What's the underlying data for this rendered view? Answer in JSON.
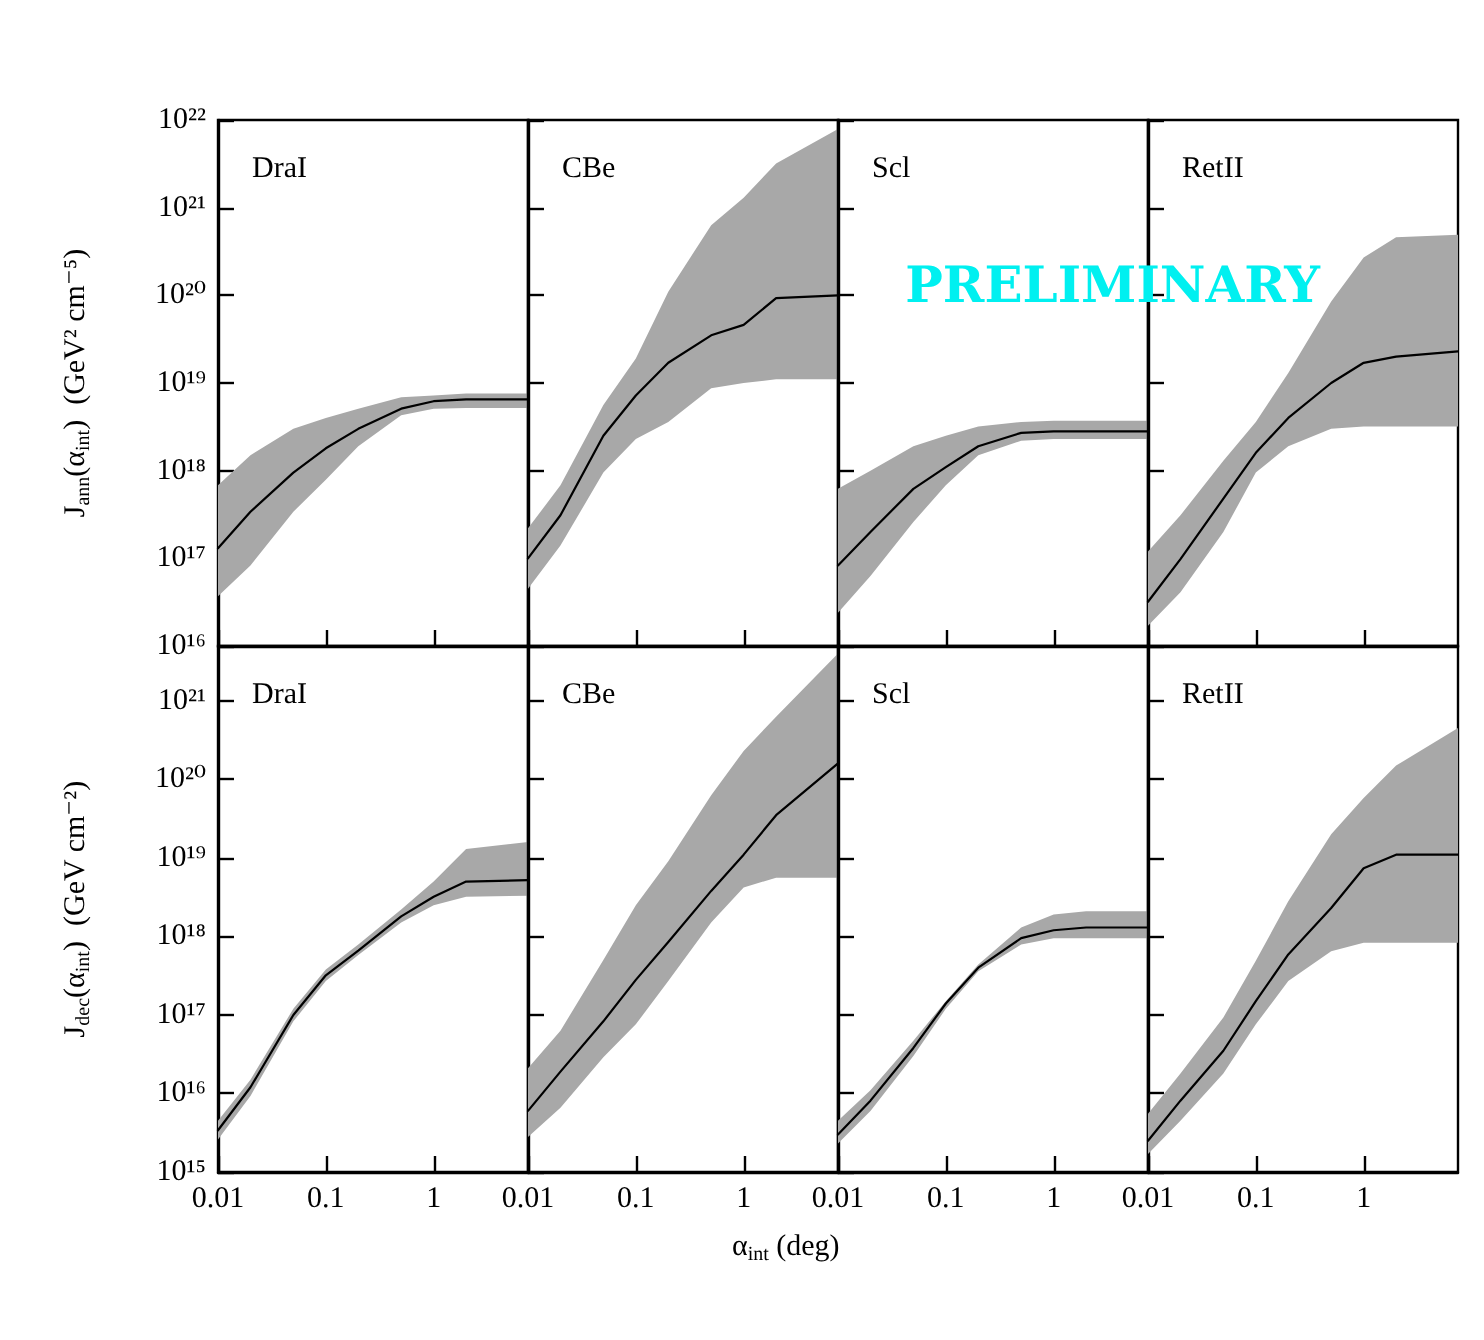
{
  "chart_data": [
    {
      "type": "line",
      "title": "DraI",
      "ylabel": "J$_{ann}$(α$_{int}$)  (GeV² cm⁻⁵)",
      "log": "xy",
      "grid": false,
      "tick_labels": "y",
      "xlim": [
        0.01,
        7.5
      ],
      "xticks": [
        0.01,
        0.1,
        1
      ],
      "ylim": [
        1e+16,
        1e+22
      ],
      "yticks": [
        {
          "value": 1e+16,
          "label": "10¹⁶"
        },
        {
          "value": 1e+17,
          "label": "10¹⁷"
        },
        {
          "value": 1e+18,
          "label": "10¹⁸"
        },
        {
          "value": 1e+19,
          "label": "10¹⁹"
        },
        {
          "value": 1e+20,
          "label": "10²⁰"
        },
        {
          "value": 1e+21,
          "label": "10²¹"
        },
        {
          "value": 1e+22,
          "label": "10²²"
        }
      ],
      "x": [
        0.01,
        0.02,
        0.05,
        0.1,
        0.2,
        0.5,
        1,
        2,
        7.5
      ],
      "series": [
        {
          "color": "#000000",
          "values": [
            1.3e+17,
            3.4e+17,
            9.5e+17,
            1.8e+18,
            3e+18,
            5.1e+18,
            6.2e+18,
            6.5e+18,
            6.5e+18
          ],
          "lower": [
            3.7e+16,
            8.3e+16,
            3.4e+17,
            7.9e+17,
            1.9e+18,
            4.3e+18,
            5.1e+18,
            5.2e+18,
            5.2e+18
          ],
          "upper": [
            6.8e+17,
            1.5e+18,
            3e+18,
            4e+18,
            5.1e+18,
            6.9e+18,
            7.2e+18,
            7.6e+18,
            7.6e+18
          ]
        }
      ]
    },
    {
      "type": "line",
      "title": "CBe",
      "log": "xy",
      "grid": false,
      "tick_labels": false,
      "xlim": [
        0.01,
        7.5
      ],
      "xticks": [
        0.01,
        0.1,
        1
      ],
      "ylim": [
        1e+16,
        1e+22
      ],
      "yticks": [
        1e+16,
        1e+17,
        1e+18,
        1e+19,
        1e+20,
        1e+21,
        1e+22
      ],
      "x": [
        0.01,
        0.02,
        0.05,
        0.1,
        0.2,
        0.5,
        1,
        2,
        7.5
      ],
      "series": [
        {
          "color": "#000000",
          "values": [
            1e+17,
            3.1e+17,
            2.5e+18,
            7.2e+18,
            1.7e+19,
            3.5e+19,
            4.6e+19,
            9.3e+19,
            1e+20
          ],
          "lower": [
            4.5e+16,
            1.4e+17,
            9.5e+17,
            2.3e+18,
            3.6e+18,
            8.7e+18,
            1e+19,
            1.1e+19,
            1.1e+19
          ],
          "upper": [
            2.2e+17,
            6.8e+17,
            5.6e+18,
            1.9e+19,
            1.1e+20,
            6.3e+20,
            1.3e+21,
            3.2e+21,
            7.9e+21
          ]
        }
      ]
    },
    {
      "type": "line",
      "title": "Scl",
      "log": "xy",
      "grid": false,
      "tick_labels": false,
      "xlim": [
        0.01,
        7.5
      ],
      "xticks": [
        0.01,
        0.1,
        1
      ],
      "ylim": [
        1e+16,
        1e+22
      ],
      "yticks": [
        1e+16,
        1e+17,
        1e+18,
        1e+19,
        1e+20,
        1e+21,
        1e+22
      ],
      "x": [
        0.01,
        0.02,
        0.05,
        0.1,
        0.2,
        0.5,
        1,
        2,
        7.5
      ],
      "series": [
        {
          "color": "#000000",
          "values": [
            8.3e+16,
            2e+17,
            6.2e+17,
            1.1e+18,
            1.9e+18,
            2.7e+18,
            2.8e+18,
            2.8e+18,
            2.8e+18
          ],
          "lower": [
            2.4e+16,
            6.3e+16,
            2.6e+17,
            6.8e+17,
            1.5e+18,
            2.2e+18,
            2.3e+18,
            2.3e+18,
            2.3e+18
          ],
          "upper": [
            6.2e+17,
            1e+18,
            1.9e+18,
            2.5e+18,
            3.2e+18,
            3.6e+18,
            3.7e+18,
            3.7e+18,
            3.7e+18
          ]
        }
      ]
    },
    {
      "type": "line",
      "title": "RetII",
      "annotations": [
        "PRELIMINARY"
      ],
      "log": "xy",
      "grid": false,
      "tick_labels": false,
      "xlim": [
        0.01,
        7.5
      ],
      "xticks": [
        0.01,
        0.1,
        1
      ],
      "ylim": [
        1e+16,
        1e+22
      ],
      "yticks": [
        1e+16,
        1e+17,
        1e+18,
        1e+19,
        1e+20,
        1e+21,
        1e+22
      ],
      "x": [
        0.01,
        0.02,
        0.05,
        0.1,
        0.2,
        0.5,
        1,
        2,
        7.5
      ],
      "series": [
        {
          "color": "#000000",
          "values": [
            3.2e+16,
            9.8e+16,
            4.8e+17,
            1.6e+18,
            4e+18,
            1e+19,
            1.7e+19,
            2e+19,
            2.3e+19
          ],
          "lower": [
            1.7e+16,
            4.1e+16,
            2e+17,
            9.5e+17,
            1.9e+18,
            3e+18,
            3.2e+18,
            3.2e+18,
            3.2e+18
          ],
          "upper": [
            1.2e+17,
            3.1e+17,
            1.3e+18,
            3.6e+18,
            1.3e+19,
            8.5e+19,
            2.7e+20,
            4.6e+20,
            4.9e+20
          ]
        }
      ]
    },
    {
      "type": "line",
      "title": "DraI",
      "ylabel": "J$_{dec}$(α$_{int}$)  (GeV cm⁻²)",
      "log": "xy",
      "grid": false,
      "xlim": [
        0.01,
        7.5
      ],
      "xticks": [
        0.01,
        0.1,
        1
      ],
      "ylim": [
        1000000000000000.0,
        5e+21
      ],
      "yticks": [
        {
          "value": 1000000000000000.0,
          "label": "10¹⁵"
        },
        {
          "value": 1e+16,
          "label": "10¹⁶"
        },
        {
          "value": 1e+17,
          "label": "10¹⁷"
        },
        {
          "value": 1e+18,
          "label": "10¹⁸"
        },
        {
          "value": 1e+19,
          "label": "10¹⁹"
        },
        {
          "value": 1e+20,
          "label": "10²⁰"
        },
        {
          "value": 1e+21,
          "label": "10²¹"
        }
      ],
      "x": [
        0.01,
        0.02,
        0.05,
        0.1,
        0.2,
        0.5,
        1,
        2,
        7.5
      ],
      "series": [
        {
          "color": "#000000",
          "values": [
            3400000000000000.0,
            1.2e+16,
            1e+17,
            3.2e+17,
            6.6e+17,
            1.8e+18,
            3.2e+18,
            5e+18,
            5.2e+18
          ],
          "lower": [
            2600000000000000.0,
            9300000000000000.0,
            8.3e+16,
            2.7e+17,
            5.8e+17,
            1.5e+18,
            2.5e+18,
            3.2e+18,
            3.3e+18
          ],
          "upper": [
            4500000000000000.0,
            1.5e+16,
            1.2e+17,
            3.8e+17,
            7.9e+17,
            2.2e+18,
            5e+18,
            1.3e+19,
            1.6e+19
          ]
        }
      ]
    },
    {
      "type": "line",
      "title": "CBe",
      "xlabel": "α$_{int}$ (deg)",
      "log": "xy",
      "grid": false,
      "tick_labels": "x",
      "xlim": [
        0.01,
        7.5
      ],
      "xticks": [
        0.01,
        0.1,
        1
      ],
      "ylim": [
        1000000000000000.0,
        5e+21
      ],
      "yticks": [
        1000000000000000.0,
        1e+16,
        1e+17,
        1e+18,
        1e+19,
        1e+20,
        1e+21
      ],
      "x": [
        0.01,
        0.02,
        0.05,
        0.1,
        0.2,
        0.5,
        1,
        2,
        7.5
      ],
      "series": [
        {
          "color": "#000000",
          "values": [
            6000000000000000.0,
            1.9e+16,
            8.3e+16,
            2.8e+17,
            8.5e+17,
            3.8e+18,
            1.1e+19,
            3.5e+19,
            1.6e+20
          ],
          "lower": [
            2800000000000000.0,
            6600000000000000.0,
            2.9e+16,
            7.6e+16,
            2.7e+17,
            1.5e+18,
            4.2e+18,
            5.6e+18,
            5.6e+18
          ],
          "upper": [
            2.1e+16,
            6.3e+16,
            5e+17,
            2.5e+18,
            9.1e+18,
            6.3e+19,
            2.3e+20,
            6.3e+20,
            4e+21
          ]
        }
      ]
    },
    {
      "type": "line",
      "title": "Scl",
      "log": "xy",
      "grid": false,
      "tick_labels": "x",
      "xlim": [
        0.01,
        7.5
      ],
      "xticks": [
        0.01,
        0.1,
        1
      ],
      "ylim": [
        1000000000000000.0,
        5e+21
      ],
      "yticks": [
        1000000000000000.0,
        1e+16,
        1e+17,
        1e+18,
        1e+19,
        1e+20,
        1e+21
      ],
      "x": [
        0.01,
        0.02,
        0.05,
        0.1,
        0.2,
        0.5,
        1,
        2,
        7.5
      ],
      "series": [
        {
          "color": "#000000",
          "values": [
            3000000000000000.0,
            8100000000000000.0,
            3.8e+16,
            1.4e+17,
            4e+17,
            9.5e+17,
            1.2e+18,
            1.3e+18,
            1.3e+18
          ],
          "lower": [
            2300000000000000.0,
            6000000000000000.0,
            3e+16,
            1.2e+17,
            3.6e+17,
            7.9e+17,
            9.5e+17,
            9.5e+17,
            9.5e+17
          ],
          "upper": [
            4500000000000000.0,
            1.1e+16,
            4.7e+16,
            1.5e+17,
            4.4e+17,
            1.3e+18,
            1.9e+18,
            2.1e+18,
            2.1e+18
          ]
        }
      ]
    },
    {
      "type": "line",
      "title": "RetII",
      "log": "xy",
      "grid": false,
      "tick_labels": "x",
      "xlim": [
        0.01,
        7.5
      ],
      "xticks": [
        0.01,
        0.1,
        1
      ],
      "ylim": [
        1000000000000000.0,
        5e+21
      ],
      "yticks": [
        1000000000000000.0,
        1e+16,
        1e+17,
        1e+18,
        1e+19,
        1e+20,
        1e+21
      ],
      "x": [
        0.01,
        0.02,
        0.05,
        0.1,
        0.2,
        0.5,
        1,
        2,
        7.5
      ],
      "series": [
        {
          "color": "#000000",
          "values": [
            2500000000000000.0,
            8100000000000000.0,
            3.5e+16,
            1.5e+17,
            5.9e+17,
            2.3e+18,
            7.4e+18,
            1.1e+19,
            1.1e+19
          ],
          "lower": [
            1700000000000000.0,
            4500000000000000.0,
            1.8e+16,
            7.6e+16,
            2.7e+17,
            6.5e+17,
            8.3e+17,
            8.3e+17,
            8.3e+17
          ],
          "upper": [
            5500000000000000.0,
            1.8e+16,
            9.3e+16,
            4.9e+17,
            2.8e+18,
            2e+19,
            5.8e+19,
            1.5e+20,
            4.5e+20
          ]
        }
      ]
    }
  ]
}
